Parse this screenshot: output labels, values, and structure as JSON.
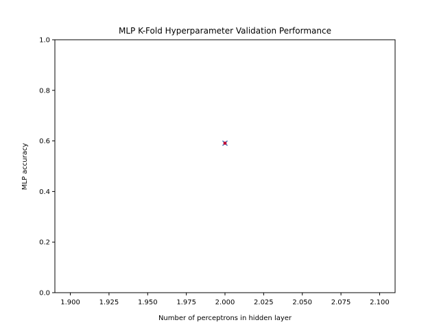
{
  "chart_data": {
    "type": "scatter",
    "title": "MLP K-Fold Hyperparameter Validation Performance",
    "xlabel": "Number of perceptrons in hidden layer",
    "ylabel": "MLP accuracy",
    "xlim": [
      1.89,
      2.11
    ],
    "ylim": [
      0.0,
      1.0
    ],
    "xticks": [
      "1.900",
      "1.925",
      "1.950",
      "1.975",
      "2.000",
      "2.025",
      "2.050",
      "2.075",
      "2.100"
    ],
    "yticks": [
      "0.0",
      "0.2",
      "0.4",
      "0.6",
      "0.8",
      "1.0"
    ],
    "grid": false,
    "series": [
      {
        "marker": "x",
        "color": "#1f4fa0",
        "points": [
          {
            "x": 2.0,
            "y": 0.591
          }
        ]
      },
      {
        "marker": "dot",
        "color": "#c0103a",
        "points": [
          {
            "x": 2.0,
            "y": 0.591
          }
        ]
      }
    ]
  }
}
